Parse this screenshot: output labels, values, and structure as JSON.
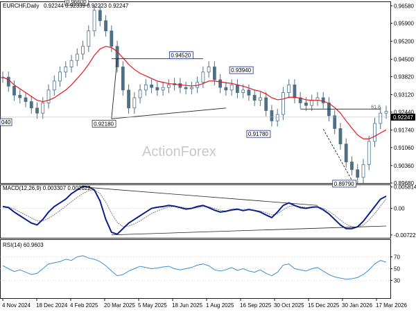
{
  "header": {
    "title": "EURCHF,Daily",
    "ohlc": "0.92244 0.92339 0.92223 0.92247",
    "last_price": "0.92247"
  },
  "watermark": "ActionForex",
  "colors": {
    "candle": "#4f6f86",
    "ma": "#e8141a",
    "macd": "#0a1d8a",
    "signal": "#808080",
    "rsi": "#3c8fd0",
    "border": "#1a1a1a"
  },
  "chart_data": [
    {
      "type": "candlestick",
      "title": "EURCHF,Daily",
      "ylim": [
        0.8968,
        0.9675
      ],
      "y_ticks": [
        "0.96580",
        "0.95900",
        "0.95200",
        "0.94500",
        "0.93820",
        "0.93120",
        "0.92440",
        "0.91740",
        "0.91060",
        "0.90360",
        "0.89680"
      ],
      "x_ticks": [
        "4 Nov 2024",
        "18 Dec 2024",
        "4 Feb 2025",
        "20 Mar 2025",
        "5 May 2025",
        "18 Jun 2025",
        "1 Aug 2025",
        "16 Sep 2025",
        "30 Oct 2025",
        "15 Dec 2025",
        "30 Jan 2026",
        "17 Mar 2026"
      ],
      "series": [
        {
          "values": [
            0.938,
            0.9345,
            0.931,
            0.93,
            0.9285,
            0.926,
            0.924,
            0.928,
            0.933,
            0.9365,
            0.94,
            0.942,
            0.9445,
            0.947,
            0.95,
            0.956,
            0.964,
            0.96,
            0.956,
            0.95,
            0.942,
            0.933,
            0.926,
            0.93,
            0.933,
            0.935,
            0.934,
            0.933,
            0.934,
            0.935,
            0.9355,
            0.934,
            0.9335,
            0.934,
            0.936,
            0.94,
            0.942,
            0.937,
            0.934,
            0.933,
            0.935,
            0.932,
            0.933,
            0.931,
            0.929,
            0.93,
            0.925,
            0.921,
            0.9235,
            0.932,
            0.935,
            0.93,
            0.928,
            0.927,
            0.929,
            0.93,
            0.928,
            0.923,
            0.918,
            0.912,
            0.905,
            0.902,
            0.899,
            0.904,
            0.913,
            0.92,
            0.924,
            0.9247
          ]
        },
        {
          "values": [
            0.938,
            0.937,
            0.935,
            0.9335,
            0.932,
            0.9305,
            0.929,
            0.9285,
            0.929,
            0.93,
            0.9315,
            0.933,
            0.935,
            0.9375,
            0.94,
            0.943,
            0.9465,
            0.949,
            0.95,
            0.9495,
            0.948,
            0.9455,
            0.943,
            0.941,
            0.9395,
            0.9385,
            0.9375,
            0.9365,
            0.936,
            0.9355,
            0.9353,
            0.935,
            0.9348,
            0.9346,
            0.9348,
            0.9355,
            0.9365,
            0.9365,
            0.9362,
            0.9358,
            0.9356,
            0.935,
            0.9345,
            0.9338,
            0.933,
            0.9325,
            0.9315,
            0.93,
            0.9292,
            0.9295,
            0.9302,
            0.9302,
            0.9298,
            0.9292,
            0.929,
            0.929,
            0.9287,
            0.9278,
            0.9262,
            0.924,
            0.921,
            0.9182,
            0.9155,
            0.914,
            0.914,
            0.915,
            0.9163,
            0.9175
          ]
        }
      ],
      "annotations": [
        "0.96600",
        "0.94520",
        "0.93940",
        "0.92180",
        "0.91780",
        "0.89790",
        "040",
        "61.8"
      ]
    },
    {
      "type": "line",
      "title": "MACD(12,26,9) 0.003307 0.002622",
      "ylim": [
        -0.008,
        0.0065
      ],
      "y_ticks": [
        "0.005814",
        "0.00",
        "-0.007222"
      ],
      "series": [
        {
          "values": [
            0.0005,
            0.0002,
            -0.001,
            -0.002,
            -0.003,
            -0.004,
            -0.0045,
            -0.003,
            -0.001,
            0.0005,
            0.0015,
            0.0025,
            0.004,
            0.005,
            0.006,
            0.0058,
            0.005,
            0.002,
            -0.003,
            -0.0065,
            -0.007,
            -0.0055,
            -0.004,
            -0.003,
            -0.002,
            -0.001,
            0.0,
            0.0003,
            0.0005,
            0.0008,
            0.0006,
            0.0002,
            -0.0002,
            0.0,
            0.0005,
            0.0008,
            0.0002,
            -0.0005,
            -0.001,
            -0.0008,
            -0.0004,
            -0.0002,
            -0.0006,
            -0.0003,
            -0.0006,
            -0.001,
            -0.0018,
            -0.0025,
            -0.001,
            0.0008,
            0.0015,
            0.0008,
            0.0002,
            0.0,
            0.0003,
            0.0004,
            -0.0004,
            -0.0015,
            -0.003,
            -0.0045,
            -0.0055,
            -0.0055,
            -0.005,
            -0.0035,
            -0.0015,
            0.0005,
            0.0025,
            0.0033
          ]
        },
        {
          "values": [
            0.0005,
            0.0004,
            -0.0002,
            -0.001,
            -0.0018,
            -0.0026,
            -0.0034,
            -0.0034,
            -0.0027,
            -0.0017,
            -0.0006,
            0.0006,
            0.0018,
            0.003,
            0.004,
            0.0048,
            0.005,
            0.004,
            0.0017,
            -0.0013,
            -0.0038,
            -0.005,
            -0.0048,
            -0.0042,
            -0.0034,
            -0.0024,
            -0.0014,
            -0.0007,
            -0.0001,
            0.0004,
            0.0005,
            0.0004,
            0.0001,
            0.0,
            0.0002,
            0.0005,
            0.0004,
            0.0,
            -0.0005,
            -0.0007,
            -0.0006,
            -0.0004,
            -0.0005,
            -0.0004,
            -0.0005,
            -0.0007,
            -0.0012,
            -0.0018,
            -0.0015,
            -0.0004,
            0.0005,
            0.0007,
            0.0005,
            0.0002,
            0.0003,
            0.0004,
            0.0,
            -0.0008,
            -0.0019,
            -0.0032,
            -0.0043,
            -0.005,
            -0.0051,
            -0.0045,
            -0.0032,
            -0.0014,
            0.0006,
            0.0026
          ]
        }
      ]
    },
    {
      "type": "line",
      "title": "RSI(14) 60.9603",
      "ylim": [
        0,
        100
      ],
      "y_ticks": [
        "70",
        "50",
        "30"
      ],
      "series": [
        {
          "values": [
            55,
            50,
            45,
            48,
            44,
            40,
            42,
            50,
            58,
            60,
            62,
            66,
            64,
            70,
            72,
            68,
            66,
            62,
            55,
            46,
            38,
            40,
            46,
            50,
            54,
            52,
            50,
            51,
            53,
            54,
            50,
            48,
            50,
            52,
            56,
            58,
            55,
            48,
            46,
            48,
            52,
            47,
            50,
            46,
            44,
            48,
            42,
            38,
            44,
            56,
            58,
            50,
            48,
            46,
            50,
            52,
            46,
            40,
            36,
            34,
            32,
            33,
            35,
            40,
            48,
            58,
            64,
            61
          ]
        }
      ]
    }
  ]
}
